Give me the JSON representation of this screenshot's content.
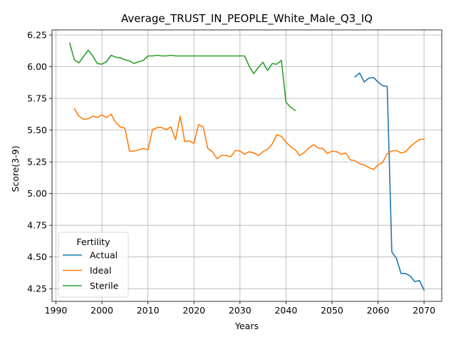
{
  "chart_data": {
    "type": "line",
    "title": "Average_TRUST_IN_PEOPLE_White_Male_Q3_IQ",
    "xlabel": "Years",
    "ylabel": "Score(3-9)",
    "xlim": [
      1989.15,
      2073.85
    ],
    "ylim": [
      4.15,
      6.29
    ],
    "xticks": [
      1990,
      2000,
      2010,
      2020,
      2030,
      2040,
      2050,
      2060,
      2070
    ],
    "yticks": [
      4.25,
      4.5,
      4.75,
      5.0,
      5.25,
      5.5,
      5.75,
      6.0,
      6.25
    ],
    "xtick_labels": [
      "1990",
      "2000",
      "2010",
      "2020",
      "2030",
      "2040",
      "2050",
      "2060",
      "2070"
    ],
    "ytick_labels": [
      "4.25",
      "4.50",
      "4.75",
      "5.00",
      "5.25",
      "5.50",
      "5.75",
      "6.00",
      "6.25"
    ],
    "grid": true,
    "legend": {
      "title": "Fertility",
      "placement": "lower-left"
    },
    "series": [
      {
        "name": "Actual",
        "color": "#1f77b4",
        "x": [
          2055,
          2056,
          2057,
          2058,
          2059,
          2060,
          2061,
          2062,
          2063,
          2064,
          2065,
          2066,
          2067,
          2068,
          2069,
          2070
        ],
        "values": [
          5.92,
          5.95,
          5.88,
          5.91,
          5.915,
          5.88,
          5.85,
          5.845,
          4.54,
          4.49,
          4.37,
          4.37,
          4.35,
          4.305,
          4.315,
          4.24
        ]
      },
      {
        "name": "Ideal",
        "color": "#ff7f0e",
        "x": [
          1994,
          1995,
          1996,
          1997,
          1998,
          1999,
          2000,
          2001,
          2002,
          2003,
          2004,
          2005,
          2006,
          2007,
          2008,
          2009,
          2010,
          2011,
          2012,
          2013,
          2014,
          2015,
          2016,
          2017,
          2018,
          2019,
          2020,
          2021,
          2022,
          2023,
          2024,
          2025,
          2026,
          2027,
          2028,
          2029,
          2030,
          2031,
          2032,
          2033,
          2034,
          2035,
          2036,
          2037,
          2038,
          2039,
          2040,
          2041,
          2042,
          2043,
          2044,
          2045,
          2046,
          2047,
          2048,
          2049,
          2050,
          2051,
          2052,
          2053,
          2054,
          2055,
          2056,
          2057,
          2058,
          2059,
          2060,
          2061,
          2062,
          2063,
          2064,
          2065,
          2066,
          2067,
          2068,
          2069,
          2070
        ],
        "values": [
          5.67,
          5.61,
          5.585,
          5.59,
          5.61,
          5.6,
          5.62,
          5.6,
          5.625,
          5.56,
          5.525,
          5.515,
          5.335,
          5.335,
          5.345,
          5.355,
          5.345,
          5.505,
          5.52,
          5.52,
          5.505,
          5.525,
          5.425,
          5.61,
          5.41,
          5.415,
          5.395,
          5.545,
          5.525,
          5.355,
          5.33,
          5.275,
          5.3,
          5.3,
          5.29,
          5.34,
          5.335,
          5.31,
          5.33,
          5.32,
          5.3,
          5.33,
          5.35,
          5.39,
          5.465,
          5.45,
          5.405,
          5.37,
          5.345,
          5.3,
          5.325,
          5.36,
          5.385,
          5.36,
          5.355,
          5.315,
          5.335,
          5.33,
          5.31,
          5.32,
          5.265,
          5.26,
          5.235,
          5.225,
          5.205,
          5.19,
          5.225,
          5.245,
          5.315,
          5.335,
          5.34,
          5.32,
          5.33,
          5.37,
          5.4,
          5.425,
          5.43
        ]
      },
      {
        "name": "Sterile",
        "color": "#2ca02c",
        "x": [
          1993,
          1994,
          1995,
          1996,
          1997,
          1998,
          1999,
          2000,
          2001,
          2002,
          2003,
          2004,
          2005,
          2006,
          2007,
          2008,
          2009,
          2010,
          2011,
          2012,
          2013,
          2014,
          2015,
          2016,
          2017,
          2018,
          2019,
          2020,
          2021,
          2022,
          2023,
          2024,
          2025,
          2026,
          2027,
          2028,
          2029,
          2030,
          2031,
          2032,
          2033,
          2034,
          2035,
          2036,
          2037,
          2038,
          2039,
          2040,
          2041,
          2042
        ],
        "values": [
          6.185,
          6.055,
          6.03,
          6.08,
          6.13,
          6.085,
          6.025,
          6.02,
          6.04,
          6.09,
          6.075,
          6.07,
          6.055,
          6.045,
          6.025,
          6.04,
          6.05,
          6.085,
          6.085,
          6.09,
          6.085,
          6.085,
          6.09,
          6.085,
          6.085,
          6.085,
          6.085,
          6.085,
          6.085,
          6.085,
          6.085,
          6.085,
          6.085,
          6.085,
          6.085,
          6.085,
          6.085,
          6.085,
          6.085,
          6.005,
          5.945,
          5.995,
          6.035,
          5.97,
          6.025,
          6.02,
          6.05,
          5.72,
          5.68,
          5.655
        ]
      }
    ]
  }
}
